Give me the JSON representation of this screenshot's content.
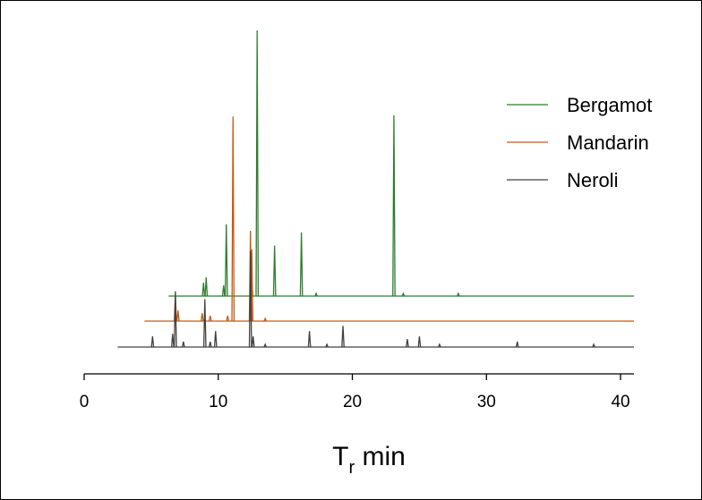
{
  "chart_data": {
    "type": "line",
    "title": "",
    "xlabel": "T",
    "xlabel_subscript": "r",
    "xlabel_suffix": " min",
    "ylabel": "",
    "xlim": [
      0,
      41
    ],
    "xticks": [
      0,
      10,
      20,
      30,
      40
    ],
    "xtick_labels": [
      "0",
      "10",
      "20",
      "30",
      "40"
    ],
    "grid": false,
    "legend_position": "top-right",
    "series": [
      {
        "name": "Bergamot",
        "color": "#2e7d2e",
        "x_start": 6.3,
        "x_end": 41,
        "peaks": [
          {
            "x": 8.9,
            "y": 0.05
          },
          {
            "x": 9.1,
            "y": 0.07
          },
          {
            "x": 10.4,
            "y": 0.04
          },
          {
            "x": 10.6,
            "y": 0.27
          },
          {
            "x": 12.5,
            "y": 0.06
          },
          {
            "x": 12.9,
            "y": 1.0
          },
          {
            "x": 14.2,
            "y": 0.19
          },
          {
            "x": 16.2,
            "y": 0.24
          },
          {
            "x": 17.3,
            "y": 0.01
          },
          {
            "x": 23.1,
            "y": 0.68
          },
          {
            "x": 23.8,
            "y": 0.01
          },
          {
            "x": 27.9,
            "y": 0.01
          }
        ]
      },
      {
        "name": "Mandarin",
        "color": "#c55a11",
        "x_start": 4.5,
        "x_end": 41,
        "peaks": [
          {
            "x": 6.8,
            "y": 0.1
          },
          {
            "x": 7.0,
            "y": 0.04
          },
          {
            "x": 8.8,
            "y": 0.03
          },
          {
            "x": 9.4,
            "y": 0.02
          },
          {
            "x": 10.7,
            "y": 0.02
          },
          {
            "x": 11.1,
            "y": 0.77
          },
          {
            "x": 12.4,
            "y": 0.34
          },
          {
            "x": 12.5,
            "y": 0.27
          },
          {
            "x": 13.5,
            "y": 0.01
          }
        ]
      },
      {
        "name": "Neroli",
        "color": "#404040",
        "x_start": 2.5,
        "x_end": 41,
        "peaks": [
          {
            "x": 5.1,
            "y": 0.04
          },
          {
            "x": 6.6,
            "y": 0.05
          },
          {
            "x": 6.8,
            "y": 0.21
          },
          {
            "x": 7.4,
            "y": 0.02
          },
          {
            "x": 9.0,
            "y": 0.18
          },
          {
            "x": 9.4,
            "y": 0.02
          },
          {
            "x": 9.8,
            "y": 0.06
          },
          {
            "x": 12.4,
            "y": 0.36
          },
          {
            "x": 12.6,
            "y": 0.04
          },
          {
            "x": 13.5,
            "y": 0.01
          },
          {
            "x": 16.8,
            "y": 0.06
          },
          {
            "x": 18.1,
            "y": 0.01
          },
          {
            "x": 19.3,
            "y": 0.08
          },
          {
            "x": 24.1,
            "y": 0.03
          },
          {
            "x": 25.0,
            "y": 0.04
          },
          {
            "x": 26.5,
            "y": 0.01
          },
          {
            "x": 32.3,
            "y": 0.02
          },
          {
            "x": 38.0,
            "y": 0.01
          }
        ]
      }
    ]
  }
}
